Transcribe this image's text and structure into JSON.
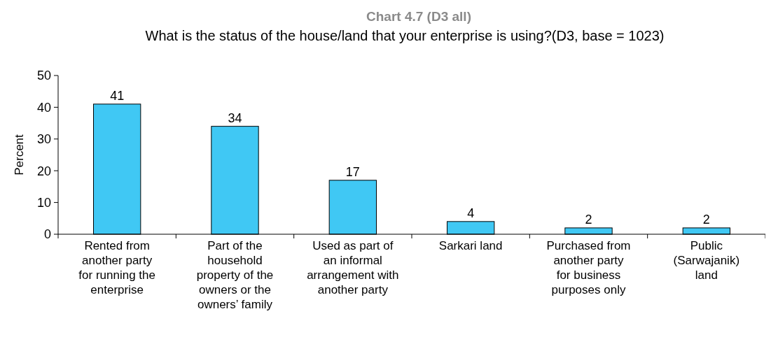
{
  "chart_data": {
    "type": "bar",
    "title": "Chart 4.7 (D3 all)",
    "subtitle": "What is the status of the house/land that your enterprise is using?(D3, base = 1023)",
    "ylabel": "Percent",
    "categories": [
      "Rented from another party for running the enterprise",
      "Part of the household property of the owners or the owners’ family",
      "Used as part of an informal arrangement with another party",
      "Sarkari land",
      "Purchased from another party for business purposes only",
      "Public (Sarwajanik) land"
    ],
    "values": [
      41,
      34,
      17,
      4,
      2,
      2
    ],
    "color": "#40c8f4",
    "ylim": [
      0,
      50
    ],
    "yticks": [
      0,
      10,
      20,
      30,
      40,
      50
    ],
    "data_labels": true,
    "grid": false
  }
}
